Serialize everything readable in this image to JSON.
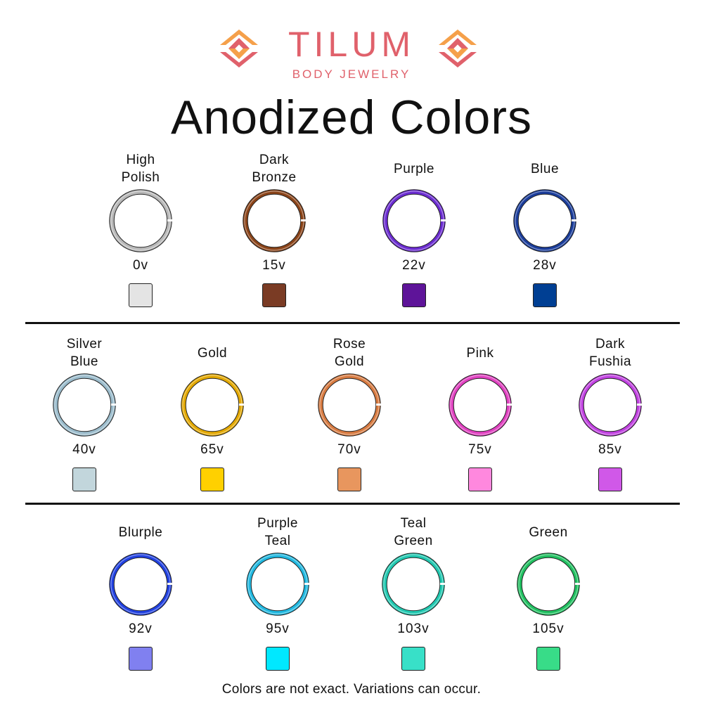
{
  "brand": {
    "name": "TILUM",
    "tagline": "BODY JEWELRY",
    "primary_color": "#e0616b",
    "accent_color": "#f5a04a"
  },
  "title": "Anodized Colors",
  "rows": [
    [
      {
        "name": [
          "High",
          "Polish"
        ],
        "voltage": "0v",
        "ring_color": "#b8b8b8",
        "swatch": "#e4e4e4"
      },
      {
        "name": [
          "Dark",
          "Bronze"
        ],
        "voltage": "15v",
        "ring_color": "#8a4318",
        "swatch": "#7a3b24"
      },
      {
        "name": [
          "Purple"
        ],
        "voltage": "22v",
        "ring_color": "#6a2bd0",
        "swatch": "#5e1499"
      },
      {
        "name": [
          "Blue"
        ],
        "voltage": "28v",
        "ring_color": "#1a3c9a",
        "swatch": "#003f93"
      }
    ],
    [
      {
        "name": [
          "Silver",
          "Blue"
        ],
        "voltage": "40v",
        "ring_color": "#9bbccc",
        "swatch": "#c2d6dc"
      },
      {
        "name": [
          "Gold"
        ],
        "voltage": "65v",
        "ring_color": "#e3a800",
        "swatch": "#ffd000"
      },
      {
        "name": [
          "Rose",
          "Gold"
        ],
        "voltage": "70v",
        "ring_color": "#d77a40",
        "swatch": "#e8965e"
      },
      {
        "name": [
          "Pink"
        ],
        "voltage": "75v",
        "ring_color": "#e040c0",
        "swatch": "#ff88de"
      },
      {
        "name": [
          "Dark",
          "Fushia"
        ],
        "voltage": "85v",
        "ring_color": "#c040e0",
        "swatch": "#d058e8"
      }
    ],
    [
      {
        "name": [
          "Blurple"
        ],
        "voltage": "92v",
        "ring_color": "#2040e0",
        "swatch": "#8080f0"
      },
      {
        "name": [
          "Purple",
          "Teal"
        ],
        "voltage": "95v",
        "ring_color": "#20b8e0",
        "swatch": "#00e8ff"
      },
      {
        "name": [
          "Teal",
          "Green"
        ],
        "voltage": "103v",
        "ring_color": "#20c8b0",
        "swatch": "#38e0c8"
      },
      {
        "name": [
          "Green"
        ],
        "voltage": "105v",
        "ring_color": "#20c060",
        "swatch": "#38dc88"
      }
    ]
  ],
  "footer": "Colors are not exact. Variations can occur."
}
